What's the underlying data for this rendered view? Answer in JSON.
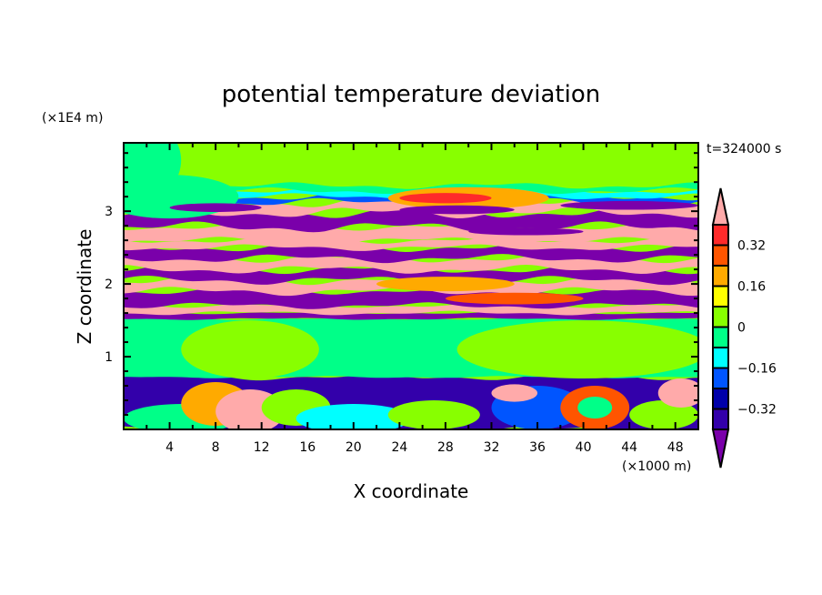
{
  "chart_data": {
    "type": "heatmap",
    "title": "potential temperature deviation",
    "xlabel": "X coordinate",
    "ylabel": "Z coordinate",
    "x_unit": "(×1000 m)",
    "y_unit": "(×1E4 m)",
    "time_label": "t=324000 s",
    "xlim": [
      0,
      50
    ],
    "ylim": [
      0,
      3.94
    ],
    "x_ticks": [
      4,
      8,
      12,
      16,
      20,
      24,
      28,
      32,
      36,
      40,
      44,
      48
    ],
    "y_ticks": [
      1,
      2,
      3
    ],
    "colorbar": {
      "levels": [
        -0.4,
        -0.32,
        -0.24,
        -0.16,
        -0.08,
        0,
        0.08,
        0.16,
        0.24,
        0.32,
        0.4
      ],
      "labels": [
        "-0.32",
        "-0.16",
        "0",
        "0.16",
        "0.32"
      ],
      "label_values": [
        -0.32,
        -0.16,
        0,
        0.16,
        0.32
      ],
      "colors": [
        "#7a00aa",
        "#3300aa",
        "#0000aa",
        "#0055ff",
        "#00ffff",
        "#00ff88",
        "#88ff00",
        "#ffff00",
        "#ffaa00",
        "#ff5500",
        "#ff2a2a",
        "#ffaaaa"
      ],
      "extend": "both"
    },
    "background_value": 0.04,
    "bands": [
      {
        "z0": 0.0,
        "z1": 0.72,
        "value": -0.36,
        "amp": 0.03
      },
      {
        "z0": 0.72,
        "z1": 1.52,
        "value": -0.04,
        "amp": 0.01
      },
      {
        "z0": 1.52,
        "z1": 1.6,
        "value": -0.45,
        "amp": 0.01
      },
      {
        "z0": 1.6,
        "z1": 1.7,
        "value": 0.45,
        "amp": 0.02
      },
      {
        "z0": 1.7,
        "z1": 1.9,
        "value": -0.45,
        "amp": 0.03
      },
      {
        "z0": 1.9,
        "z1": 2.05,
        "value": 0.45,
        "amp": 0.04
      },
      {
        "z0": 2.05,
        "z1": 2.2,
        "value": -0.45,
        "amp": 0.04
      },
      {
        "z0": 2.2,
        "z1": 2.35,
        "value": 0.45,
        "amp": 0.04
      },
      {
        "z0": 2.35,
        "z1": 2.5,
        "value": -0.45,
        "amp": 0.04
      },
      {
        "z0": 2.5,
        "z1": 2.6,
        "value": 0.45,
        "amp": 0.03
      },
      {
        "z0": 2.6,
        "z1": 2.78,
        "value": 0.45,
        "amp": 0.03
      },
      {
        "z0": 2.78,
        "z1": 2.98,
        "value": -0.45,
        "amp": 0.05
      },
      {
        "z0": 2.98,
        "z1": 3.12,
        "value": 0.45,
        "amp": 0.05
      },
      {
        "z0": 3.12,
        "z1": 3.2,
        "value": -0.2,
        "amp": 0.04
      },
      {
        "z0": 3.2,
        "z1": 3.28,
        "value": -0.12,
        "amp": 0.03
      },
      {
        "z0": 3.28,
        "z1": 3.35,
        "value": -0.04,
        "amp": 0.03
      }
    ],
    "blobs": [
      {
        "x": 2,
        "z": 3.7,
        "rx": 3,
        "rz": 0.5,
        "value": -0.04
      },
      {
        "x": 4,
        "z": 3.2,
        "rx": 6,
        "rz": 0.3,
        "value": -0.04
      },
      {
        "x": 30,
        "z": 3.18,
        "rx": 7,
        "rz": 0.15,
        "value": 0.2
      },
      {
        "x": 28,
        "z": 3.18,
        "rx": 4,
        "rz": 0.07,
        "value": 0.36
      },
      {
        "x": 8,
        "z": 3.05,
        "rx": 4,
        "rz": 0.06,
        "value": -0.45
      },
      {
        "x": 29,
        "z": 3.02,
        "rx": 5,
        "rz": 0.06,
        "value": -0.45
      },
      {
        "x": 44,
        "z": 3.08,
        "rx": 6,
        "rz": 0.06,
        "value": -0.45
      },
      {
        "x": 35,
        "z": 2.72,
        "rx": 5,
        "rz": 0.05,
        "value": -0.45
      },
      {
        "x": 28,
        "z": 2.0,
        "rx": 6,
        "rz": 0.1,
        "value": 0.2
      },
      {
        "x": 34,
        "z": 1.8,
        "rx": 6,
        "rz": 0.08,
        "value": 0.28
      },
      {
        "x": 11,
        "z": 1.1,
        "rx": 6,
        "rz": 0.4,
        "value": 0.04
      },
      {
        "x": 40,
        "z": 1.1,
        "rx": 11,
        "rz": 0.4,
        "value": 0.04
      },
      {
        "x": 5,
        "z": 0.15,
        "rx": 5,
        "rz": 0.2,
        "value": -0.04
      },
      {
        "x": 8,
        "z": 0.35,
        "rx": 3,
        "rz": 0.3,
        "value": 0.2
      },
      {
        "x": 11,
        "z": 0.25,
        "rx": 3,
        "rz": 0.3,
        "value": 0.45
      },
      {
        "x": 15,
        "z": 0.3,
        "rx": 3,
        "rz": 0.25,
        "value": 0.04
      },
      {
        "x": 20,
        "z": 0.15,
        "rx": 5,
        "rz": 0.2,
        "value": -0.12
      },
      {
        "x": 27,
        "z": 0.2,
        "rx": 4,
        "rz": 0.2,
        "value": 0.04
      },
      {
        "x": 36,
        "z": 0.3,
        "rx": 4,
        "rz": 0.3,
        "value": -0.2
      },
      {
        "x": 34,
        "z": 0.5,
        "rx": 2,
        "rz": 0.12,
        "value": 0.45
      },
      {
        "x": 41,
        "z": 0.3,
        "rx": 3,
        "rz": 0.3,
        "value": 0.3
      },
      {
        "x": 41,
        "z": 0.3,
        "rx": 1.5,
        "rz": 0.15,
        "value": -0.04
      },
      {
        "x": 47,
        "z": 0.2,
        "rx": 3,
        "rz": 0.2,
        "value": 0.04
      },
      {
        "x": 48.5,
        "z": 0.5,
        "rx": 2,
        "rz": 0.2,
        "value": 0.45
      }
    ]
  }
}
